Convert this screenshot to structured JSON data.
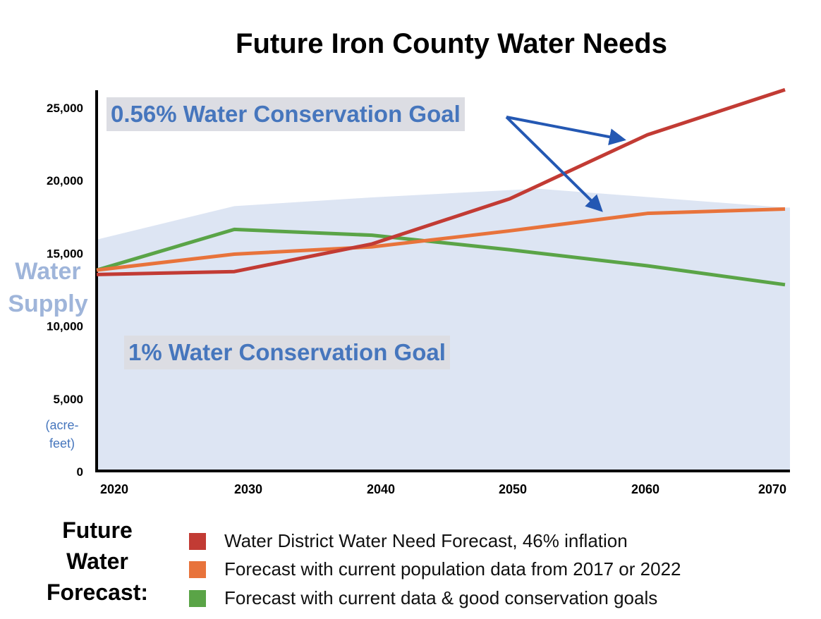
{
  "chart_data": {
    "type": "line",
    "title": "Future Iron County Water Needs",
    "ylabel_unit": "(acre-feet)",
    "x": [
      2020,
      2030,
      2040,
      2050,
      2060,
      2070
    ],
    "x_ticks": [
      "2020",
      "2030",
      "2040",
      "2050",
      "2060",
      "2070"
    ],
    "y_ticks": [
      "0",
      "5,000",
      "10,000",
      "15,000",
      "20,000",
      "25,000"
    ],
    "ylim": [
      0,
      26500
    ],
    "grid": false,
    "series": [
      {
        "name": "Water District Water Need Forecast, 46% inflation",
        "color": "#c23b34",
        "values": [
          13500,
          13700,
          15600,
          18700,
          23100,
          26200
        ]
      },
      {
        "name": "Forecast with current population data from 2017 or 2022",
        "color": "#e8733b",
        "values": [
          13800,
          14900,
          15400,
          16500,
          17700,
          18000
        ]
      },
      {
        "name": "Forecast with current data & good conservation goals",
        "color": "#5aa447",
        "values": [
          13800,
          16600,
          16200,
          15200,
          14100,
          12800
        ]
      }
    ],
    "area": {
      "name": "Water Supply",
      "color": "#dde5f3",
      "x": [
        2020,
        2030,
        2040,
        2052,
        2070
      ],
      "values": [
        15900,
        18200,
        18800,
        19400,
        18100
      ]
    },
    "annotations": [
      "0.56% Water Conservation Goal",
      "1% Water Conservation Goal"
    ],
    "arrow_color": "#2458b3",
    "legend_title": "Future Water Forecast:",
    "legend_position": "bottom"
  }
}
